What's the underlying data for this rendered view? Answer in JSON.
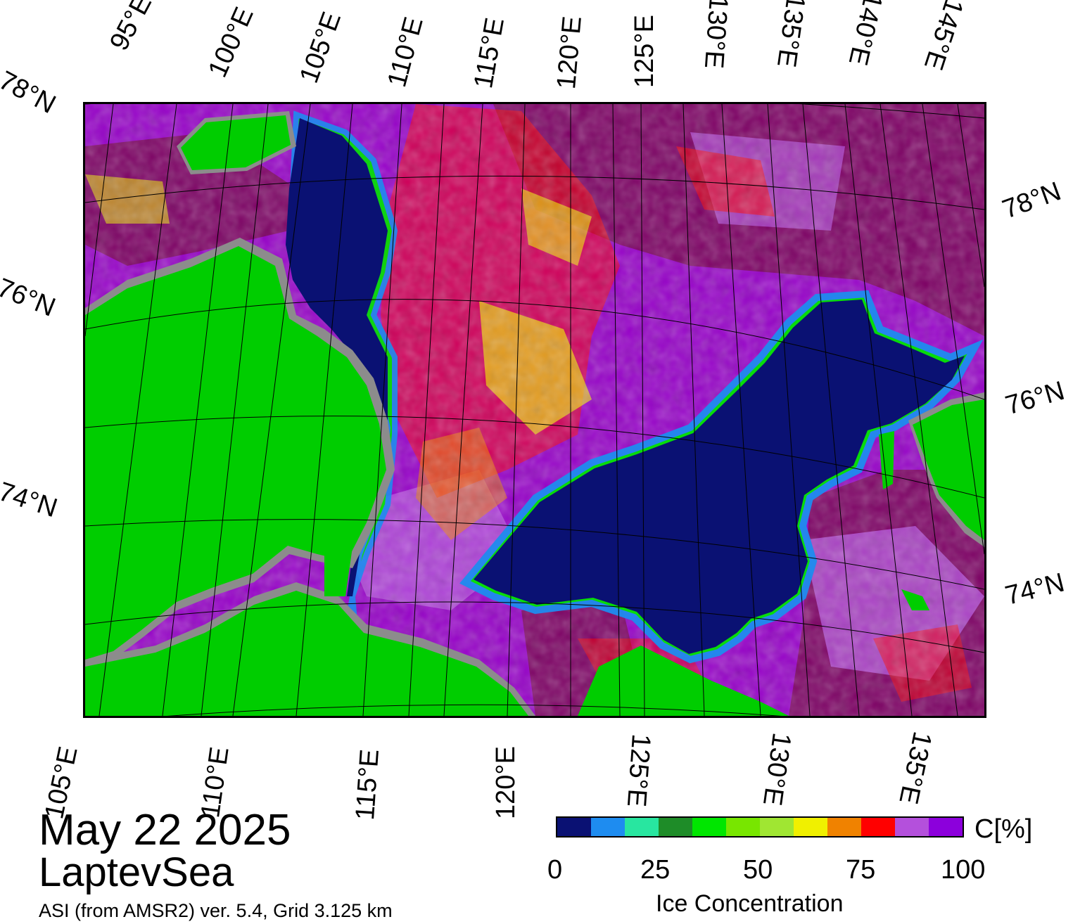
{
  "header": {
    "date": "May 22 2025",
    "region": "LaptevSea"
  },
  "footer": {
    "source": "ASI (from AMSR2) ver. 5.4,  Grid 3.125 km"
  },
  "colorbar": {
    "title": "Ice Concentration",
    "unit": "C[%]",
    "ticks": [
      "0",
      "25",
      "50",
      "75",
      "100"
    ],
    "range": [
      0,
      100
    ],
    "colors": [
      "#0a1173",
      "#1e8cf0",
      "#28e6a0",
      "#1e8c28",
      "#00e600",
      "#78e600",
      "#a0e632",
      "#f0f000",
      "#f08200",
      "#ff0000",
      "#b450dc",
      "#8c00dc"
    ]
  },
  "map": {
    "top_lon_labels": [
      "95°E",
      "100°E",
      "105°E",
      "110°E",
      "115°E",
      "120°E",
      "125°E",
      "130°E",
      "135°E",
      "140°E",
      "145°E"
    ],
    "bottom_lon_labels": [
      "105°E",
      "110°E",
      "115°E",
      "120°E",
      "125°E",
      "130°E",
      "135°E"
    ],
    "left_lat_labels": [
      "78°N",
      "76°N",
      "74°N"
    ],
    "right_lat_labels": [
      "78°N",
      "76°N",
      "74°N"
    ],
    "colors": {
      "land": "#00cd00",
      "coast_shelf": "#8c8c8c",
      "open_water": "#0a0a78",
      "ice_high": "#7d0064",
      "ice_mid": "#9600c8",
      "ice_light": "#b450dc",
      "ice_red": "#ff0000",
      "ice_yellow": "#f0f000"
    }
  }
}
